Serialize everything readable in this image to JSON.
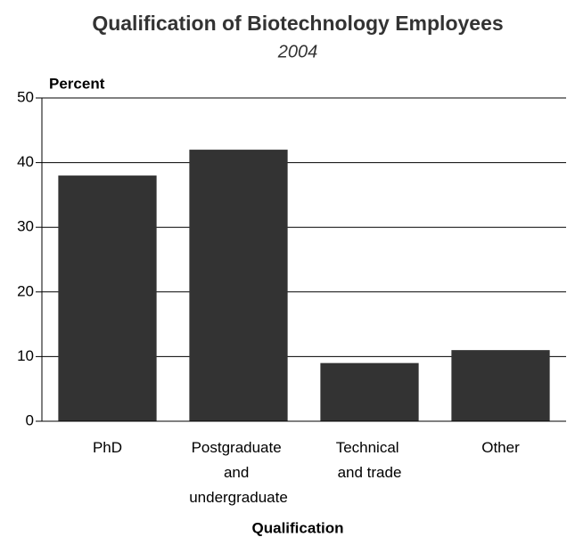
{
  "chart_data": {
    "type": "bar",
    "title": "Qualification of Biotechnology Employees",
    "subtitle": "2004",
    "y_label": "Percent",
    "x_label": "Qualification",
    "categories": [
      "PhD",
      "Postgraduate and undergraduate",
      "Technical and trade",
      "Other"
    ],
    "values": [
      38,
      42,
      9,
      11
    ],
    "color": "#333333",
    "ylim": [
      0,
      50
    ],
    "yticks": [
      0,
      10,
      20,
      30,
      40,
      50
    ],
    "grid": true
  }
}
